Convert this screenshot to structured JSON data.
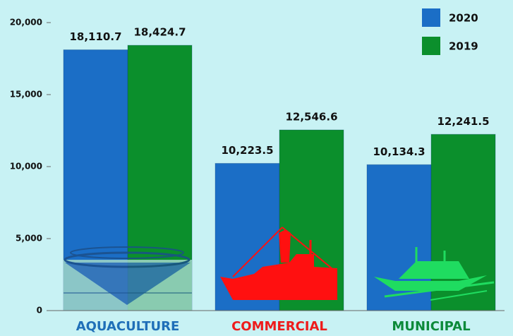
{
  "chart_data": {
    "type": "bar",
    "categories": [
      "AQUACULTURE",
      "COMMERCIAL",
      "MUNICIPAL"
    ],
    "category_colors": [
      "#1f6fb8",
      "#ee1c1c",
      "#0c8a3a"
    ],
    "series": [
      {
        "name": "2020",
        "color": "#1b6ec6",
        "values": [
          18110.7,
          10223.5,
          10134.3
        ],
        "value_labels": [
          "18,110.7",
          "10,223.5",
          "10,134.3"
        ]
      },
      {
        "name": "2019",
        "color": "#0b8f2c",
        "values": [
          18424.7,
          12546.6,
          12241.5
        ],
        "value_labels": [
          "18,424.7",
          "12,546.6",
          "12,241.5"
        ]
      }
    ],
    "ylim": [
      0,
      20000
    ],
    "yticks": [
      0,
      {
        "value": 5000,
        "label": "5,000"
      },
      {
        "value": 10000,
        "label": "10,000"
      },
      {
        "value": 15000,
        "label": "15,000"
      },
      {
        "value": 20000,
        "label": "20,000"
      }
    ],
    "grid": false,
    "legend": "top-right"
  }
}
